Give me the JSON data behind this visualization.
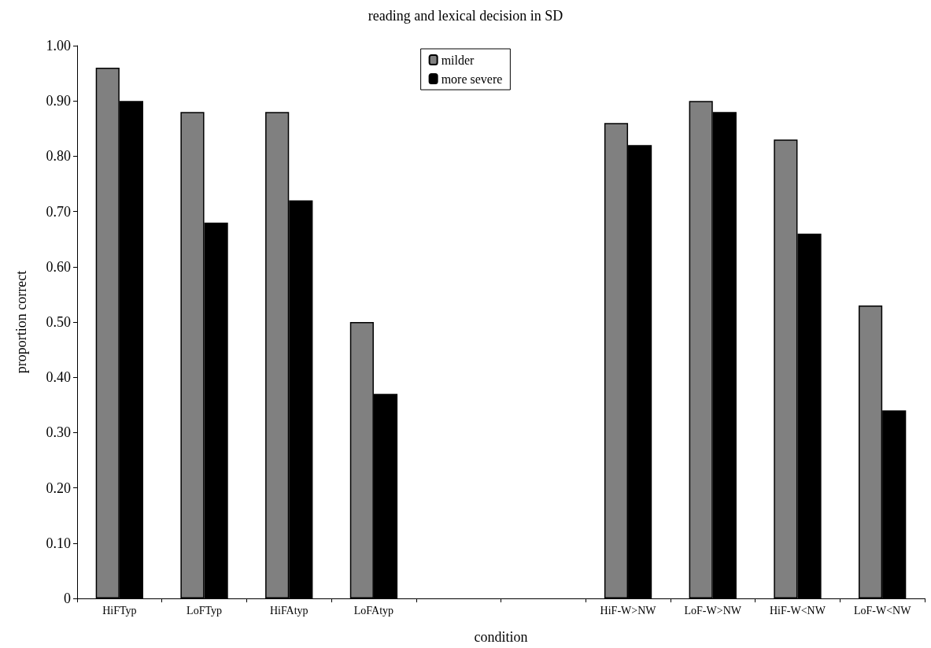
{
  "chart_data": {
    "type": "bar",
    "title": "reading and lexical decision in SD",
    "xlabel": "condition",
    "ylabel": "proportion correct",
    "categories": [
      "HiFTyp",
      "LoFTyp",
      "HiFAtyp",
      "LoFAtyp",
      null,
      null,
      "HiF-W>NW",
      "LoF-W>NW",
      "HiF-W<NW",
      "LoF-W<NW"
    ],
    "series": [
      {
        "name": "milder",
        "color": "#808080",
        "values": [
          0.96,
          0.88,
          0.88,
          0.5,
          null,
          null,
          0.86,
          0.9,
          0.83,
          0.53
        ]
      },
      {
        "name": "more severe",
        "color": "#000000",
        "values": [
          0.9,
          0.68,
          0.72,
          0.37,
          null,
          null,
          0.82,
          0.88,
          0.66,
          0.34
        ]
      }
    ],
    "ylim": [
      0,
      1
    ],
    "yticks": [
      0,
      {
        "value": 0.1,
        "label": "0.10"
      },
      {
        "value": 0.2,
        "label": "0.20"
      },
      {
        "value": 0.3,
        "label": "0.30"
      },
      {
        "value": 0.4,
        "label": "0.40"
      },
      {
        "value": 0.5,
        "label": "0.50"
      },
      {
        "value": 0.6,
        "label": "0.60"
      },
      {
        "value": 0.7,
        "label": "0.70"
      },
      {
        "value": 0.8,
        "label": "0.80"
      },
      {
        "value": 0.9,
        "label": "0.90"
      },
      {
        "value": 1,
        "label": "1.00"
      }
    ],
    "legend": "top",
    "grid": false
  }
}
